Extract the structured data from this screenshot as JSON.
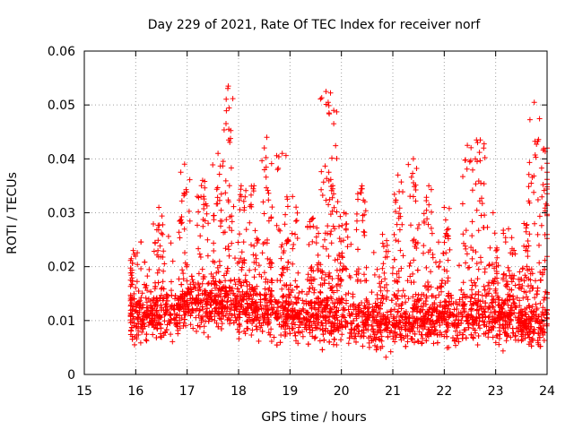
{
  "chart_data": {
    "type": "scatter",
    "title": "Day 229 of 2021, Rate Of TEC Index for receiver norf",
    "xlabel": "GPS time / hours",
    "ylabel": "ROTI / TECUs",
    "xlim": [
      15,
      24
    ],
    "ylim": [
      0,
      0.06
    ],
    "x_ticks": [
      "15",
      "16",
      "17",
      "18",
      "19",
      "20",
      "21",
      "22",
      "23",
      "24"
    ],
    "y_ticks": [
      "0",
      "0.01",
      "0.02",
      "0.03",
      "0.04",
      "0.05",
      "0.06"
    ],
    "grid": true,
    "marker": "+",
    "color": "#ff0000",
    "series": [
      {
        "name": "ROTI",
        "baseline": [
          [
            15.9,
            0.0105
          ],
          [
            16.5,
            0.0105
          ],
          [
            17.0,
            0.0125
          ],
          [
            17.5,
            0.013
          ],
          [
            18.0,
            0.012
          ],
          [
            18.5,
            0.0115
          ],
          [
            19.0,
            0.0105
          ],
          [
            19.5,
            0.0105
          ],
          [
            20.0,
            0.0105
          ],
          [
            20.5,
            0.0095
          ],
          [
            21.0,
            0.009
          ],
          [
            21.5,
            0.0095
          ],
          [
            22.0,
            0.01
          ],
          [
            22.5,
            0.0105
          ],
          [
            23.0,
            0.01
          ],
          [
            23.5,
            0.0095
          ],
          [
            24.0,
            0.0095
          ]
        ],
        "peaks": [
          [
            15.95,
            0.023
          ],
          [
            16.45,
            0.031
          ],
          [
            16.95,
            0.039
          ],
          [
            17.3,
            0.036
          ],
          [
            17.6,
            0.041
          ],
          [
            17.8,
            0.0535
          ],
          [
            18.05,
            0.035
          ],
          [
            18.3,
            0.035
          ],
          [
            18.55,
            0.044
          ],
          [
            18.85,
            0.041
          ],
          [
            19.05,
            0.033
          ],
          [
            19.45,
            0.029
          ],
          [
            19.7,
            0.0525
          ],
          [
            19.85,
            0.049
          ],
          [
            20.05,
            0.03
          ],
          [
            20.4,
            0.035
          ],
          [
            20.8,
            0.026
          ],
          [
            21.1,
            0.037
          ],
          [
            21.4,
            0.04
          ],
          [
            21.7,
            0.035
          ],
          [
            22.0,
            0.031
          ],
          [
            22.45,
            0.0425
          ],
          [
            22.7,
            0.0435
          ],
          [
            22.95,
            0.03
          ],
          [
            23.25,
            0.027
          ],
          [
            23.55,
            0.028
          ],
          [
            23.75,
            0.0505
          ],
          [
            24.0,
            0.042
          ]
        ]
      }
    ]
  }
}
